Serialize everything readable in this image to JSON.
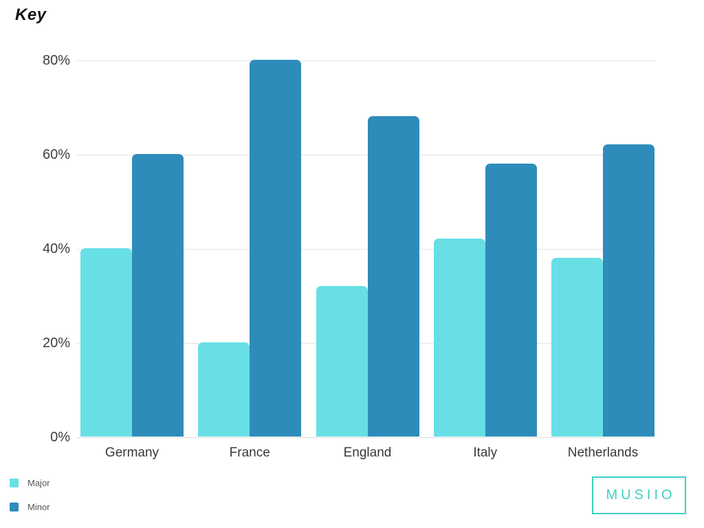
{
  "chart_data": {
    "type": "bar",
    "title": "Key",
    "categories": [
      "Germany",
      "France",
      "England",
      "Italy",
      "Netherlands"
    ],
    "series": [
      {
        "name": "Major",
        "color": "#68DFE5",
        "values": [
          40,
          20,
          32,
          42,
          38
        ]
      },
      {
        "name": "Minor",
        "color": "#2E8CBA",
        "values": [
          60,
          80,
          68,
          58,
          62
        ]
      }
    ],
    "xlabel": "",
    "ylabel": "",
    "ylim": [
      0,
      80
    ],
    "yticks": [
      {
        "value": 0,
        "label": "0%"
      },
      {
        "value": 20,
        "label": "20%"
      },
      {
        "value": 40,
        "label": "40%"
      },
      {
        "value": 60,
        "label": "60%"
      },
      {
        "value": 80,
        "label": "80%"
      }
    ],
    "grid": true,
    "gridline_color": "#E4E4E4",
    "baseline_color": "#D9D9D9",
    "legend_position": "bottom-left"
  },
  "legend": {
    "items": [
      {
        "label": "Major",
        "color": "#68DFE5"
      },
      {
        "label": "Minor",
        "color": "#2E8CBA"
      }
    ]
  },
  "branding": {
    "logo_text": "MUSIIO",
    "accent_color": "#3ECFC2"
  }
}
